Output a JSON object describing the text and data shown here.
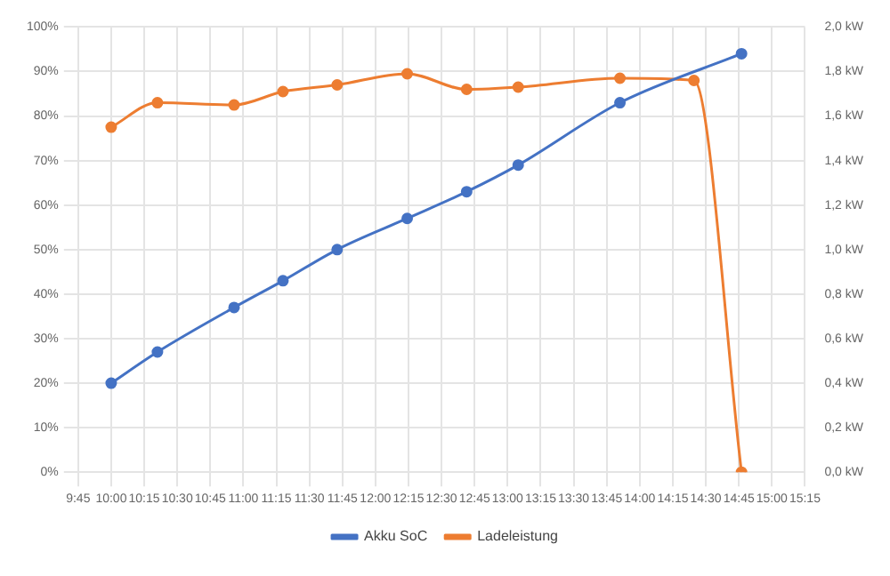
{
  "chart_data": {
    "type": "line",
    "x": [
      10.0,
      10.35,
      10.93,
      11.3,
      11.71,
      12.24,
      12.69,
      13.08,
      13.85,
      14.77
    ],
    "series": [
      {
        "name": "Akku SoC",
        "color": "#4472c4",
        "values": [
          20,
          27,
          37,
          43,
          50,
          57,
          63,
          69,
          83,
          94
        ]
      },
      {
        "name": "Ladeleistung",
        "color": "#ed7d31",
        "axis": "y2",
        "x": [
          10.0,
          10.35,
          10.93,
          11.3,
          11.71,
          12.24,
          12.69,
          13.08,
          13.85,
          14.41,
          14.77
        ],
        "values": [
          1.55,
          1.66,
          1.65,
          1.71,
          1.74,
          1.79,
          1.72,
          1.73,
          1.77,
          1.76,
          0
        ]
      }
    ],
    "xlim": [
      9.75,
      15.25
    ],
    "xticks": [
      {
        "value": 9.75,
        "label": "9:45"
      },
      {
        "value": 10,
        "label": "10:00"
      },
      {
        "value": 10.25,
        "label": "10:15"
      },
      {
        "value": 10.5,
        "label": "10:30"
      },
      {
        "value": 10.75,
        "label": "10:45"
      },
      {
        "value": 11,
        "label": "11:00"
      },
      {
        "value": 11.25,
        "label": "11:15"
      },
      {
        "value": 11.5,
        "label": "11:30"
      },
      {
        "value": 11.75,
        "label": "11:45"
      },
      {
        "value": 12,
        "label": "12:00"
      },
      {
        "value": 12.25,
        "label": "12:15"
      },
      {
        "value": 12.5,
        "label": "12:30"
      },
      {
        "value": 12.75,
        "label": "12:45"
      },
      {
        "value": 13,
        "label": "13:00"
      },
      {
        "value": 13.25,
        "label": "13:15"
      },
      {
        "value": 13.5,
        "label": "13:30"
      },
      {
        "value": 13.75,
        "label": "13:45"
      },
      {
        "value": 14,
        "label": "14:00"
      },
      {
        "value": 14.25,
        "label": "14:15"
      },
      {
        "value": 14.5,
        "label": "14:30"
      },
      {
        "value": 14.75,
        "label": "14:45"
      },
      {
        "value": 15,
        "label": "15:00"
      },
      {
        "value": 15.25,
        "label": "15:15"
      }
    ],
    "ylim": [
      0,
      100
    ],
    "yticks": [
      {
        "value": 0,
        "label": "0%"
      },
      {
        "value": 10,
        "label": "10%"
      },
      {
        "value": 20,
        "label": "20%"
      },
      {
        "value": 30,
        "label": "30%"
      },
      {
        "value": 40,
        "label": "40%"
      },
      {
        "value": 50,
        "label": "50%"
      },
      {
        "value": 60,
        "label": "60%"
      },
      {
        "value": 70,
        "label": "70%"
      },
      {
        "value": 80,
        "label": "80%"
      },
      {
        "value": 90,
        "label": "90%"
      },
      {
        "value": 100,
        "label": "100%"
      }
    ],
    "y2lim": [
      0,
      2
    ],
    "y2ticks": [
      {
        "value": 0,
        "label": "0,0 kW"
      },
      {
        "value": 0.2,
        "label": "0,2 kW"
      },
      {
        "value": 0.4,
        "label": "0,4 kW"
      },
      {
        "value": 0.6,
        "label": "0,6 kW"
      },
      {
        "value": 0.8,
        "label": "0,8 kW"
      },
      {
        "value": 1,
        "label": "1,0 kW"
      },
      {
        "value": 1.2,
        "label": "1,2 kW"
      },
      {
        "value": 1.4,
        "label": "1,4 kW"
      },
      {
        "value": 1.6,
        "label": "1,6 kW"
      },
      {
        "value": 1.8,
        "label": "1,8 kW"
      },
      {
        "value": 2,
        "label": "2,0 kW"
      }
    ],
    "grid": true,
    "legend": "bottom",
    "marker": "circle",
    "line_style": "solid"
  }
}
